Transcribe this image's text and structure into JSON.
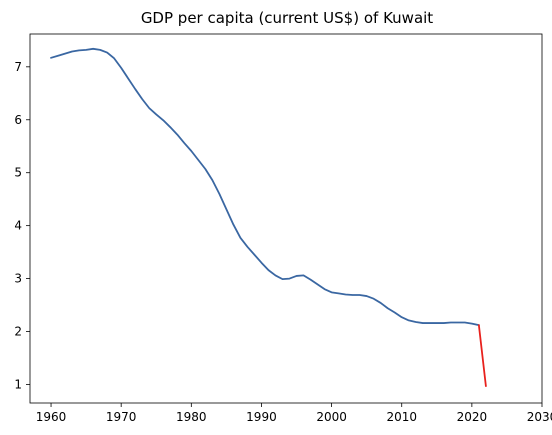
{
  "chart_data": {
    "type": "line",
    "title": "GDP per capita (current US$) of Kuwait",
    "xlabel": "",
    "ylabel": "",
    "xlim": [
      1957,
      2030
    ],
    "ylim": [
      0.65,
      7.62
    ],
    "xticks": [
      1960,
      1970,
      1980,
      1990,
      2000,
      2010,
      2020,
      2030
    ],
    "yticks": [
      1,
      2,
      3,
      4,
      5,
      6,
      7
    ],
    "grid": false,
    "series": [
      {
        "color": "#3a67a2",
        "points": [
          [
            1960,
            7.17
          ],
          [
            1961,
            7.21
          ],
          [
            1962,
            7.25
          ],
          [
            1963,
            7.29
          ],
          [
            1964,
            7.31
          ],
          [
            1965,
            7.32
          ],
          [
            1966,
            7.34
          ],
          [
            1967,
            7.32
          ],
          [
            1968,
            7.27
          ],
          [
            1969,
            7.16
          ],
          [
            1970,
            6.98
          ],
          [
            1971,
            6.78
          ],
          [
            1972,
            6.58
          ],
          [
            1973,
            6.39
          ],
          [
            1974,
            6.22
          ],
          [
            1975,
            6.1
          ],
          [
            1976,
            5.99
          ],
          [
            1977,
            5.86
          ],
          [
            1978,
            5.72
          ],
          [
            1979,
            5.56
          ],
          [
            1980,
            5.41
          ],
          [
            1981,
            5.24
          ],
          [
            1982,
            5.07
          ],
          [
            1983,
            4.86
          ],
          [
            1984,
            4.6
          ],
          [
            1985,
            4.31
          ],
          [
            1986,
            4.02
          ],
          [
            1987,
            3.77
          ],
          [
            1988,
            3.6
          ],
          [
            1989,
            3.45
          ],
          [
            1990,
            3.3
          ],
          [
            1991,
            3.16
          ],
          [
            1992,
            3.06
          ],
          [
            1993,
            2.99
          ],
          [
            1994,
            3.0
          ],
          [
            1995,
            3.05
          ],
          [
            1996,
            3.06
          ],
          [
            1997,
            2.98
          ],
          [
            1998,
            2.89
          ],
          [
            1999,
            2.8
          ],
          [
            2000,
            2.74
          ],
          [
            2001,
            2.72
          ],
          [
            2002,
            2.7
          ],
          [
            2003,
            2.69
          ],
          [
            2004,
            2.69
          ],
          [
            2005,
            2.67
          ],
          [
            2006,
            2.62
          ],
          [
            2007,
            2.54
          ],
          [
            2008,
            2.44
          ],
          [
            2009,
            2.36
          ],
          [
            2010,
            2.27
          ],
          [
            2011,
            2.21
          ],
          [
            2012,
            2.18
          ],
          [
            2013,
            2.16
          ],
          [
            2014,
            2.16
          ],
          [
            2015,
            2.16
          ],
          [
            2016,
            2.16
          ],
          [
            2017,
            2.17
          ],
          [
            2018,
            2.17
          ],
          [
            2019,
            2.17
          ],
          [
            2020,
            2.15
          ],
          [
            2021,
            2.12
          ]
        ]
      },
      {
        "color": "#e8211d",
        "points": [
          [
            2021,
            2.12
          ],
          [
            2022,
            0.97
          ]
        ]
      }
    ]
  }
}
